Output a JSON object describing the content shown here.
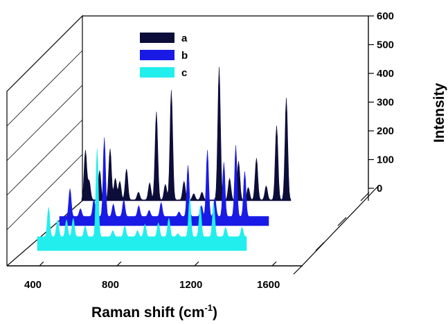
{
  "chart_data": {
    "type": "area",
    "subtype": "3d-waterfall",
    "xlabel": "Raman shift (cm",
    "xlabel_sup": "-1",
    "xlabel_end": ")",
    "ylabel": "Intensity",
    "x_ticks": [
      "400",
      "800",
      "1200",
      "1600"
    ],
    "x_tick_values": [
      400,
      800,
      1200,
      1600
    ],
    "y_ticks": [
      "0",
      "100",
      "200",
      "300",
      "400",
      "500",
      "600"
    ],
    "y_tick_values": [
      0,
      100,
      200,
      300,
      400,
      500,
      600
    ],
    "xlim": [
      400,
      1800
    ],
    "ylim": [
      0,
      600
    ],
    "legend_position": "top-left",
    "series": [
      {
        "name": "a",
        "color": "#0d0d3a",
        "baseline": 3,
        "peaks": [
          [
            425,
            160
          ],
          [
            450,
            60
          ],
          [
            520,
            95
          ],
          [
            590,
            165
          ],
          [
            625,
            70
          ],
          [
            655,
            60
          ],
          [
            700,
            100
          ],
          [
            780,
            25
          ],
          [
            855,
            55
          ],
          [
            900,
            285
          ],
          [
            960,
            50
          ],
          [
            1000,
            355
          ],
          [
            1085,
            60
          ],
          [
            1150,
            20
          ],
          [
            1205,
            25
          ],
          [
            1320,
            430
          ],
          [
            1390,
            70
          ],
          [
            1450,
            125
          ],
          [
            1515,
            40
          ],
          [
            1570,
            135
          ],
          [
            1635,
            45
          ],
          [
            1705,
            240
          ],
          [
            1770,
            330
          ]
        ],
        "width": 9
      },
      {
        "name": "b",
        "color": "#1a1ae6",
        "baseline": 30,
        "peaks": [
          [
            470,
            90
          ],
          [
            540,
            25
          ],
          [
            630,
            55
          ],
          [
            700,
            255
          ],
          [
            760,
            40
          ],
          [
            830,
            55
          ],
          [
            930,
            35
          ],
          [
            1000,
            20
          ],
          [
            1080,
            45
          ],
          [
            1200,
            15
          ],
          [
            1260,
            165
          ],
          [
            1350,
            35
          ],
          [
            1390,
            215
          ],
          [
            1440,
            60
          ],
          [
            1500,
            175
          ],
          [
            1580,
            230
          ],
          [
            1640,
            145
          ]
        ],
        "width": 8
      },
      {
        "name": "c",
        "color": "#22eeee",
        "baseline": 45,
        "peaks": [
          [
            475,
            95
          ],
          [
            535,
            55
          ],
          [
            595,
            55
          ],
          [
            640,
            60
          ],
          [
            720,
            35
          ],
          [
            800,
            285
          ],
          [
            905,
            20
          ],
          [
            985,
            35
          ],
          [
            1070,
            20
          ],
          [
            1120,
            40
          ],
          [
            1210,
            45
          ],
          [
            1280,
            60
          ],
          [
            1340,
            10
          ],
          [
            1420,
            125
          ],
          [
            1490,
            100
          ],
          [
            1580,
            110
          ],
          [
            1660,
            30
          ],
          [
            1770,
            30
          ]
        ],
        "width": 8
      }
    ]
  }
}
